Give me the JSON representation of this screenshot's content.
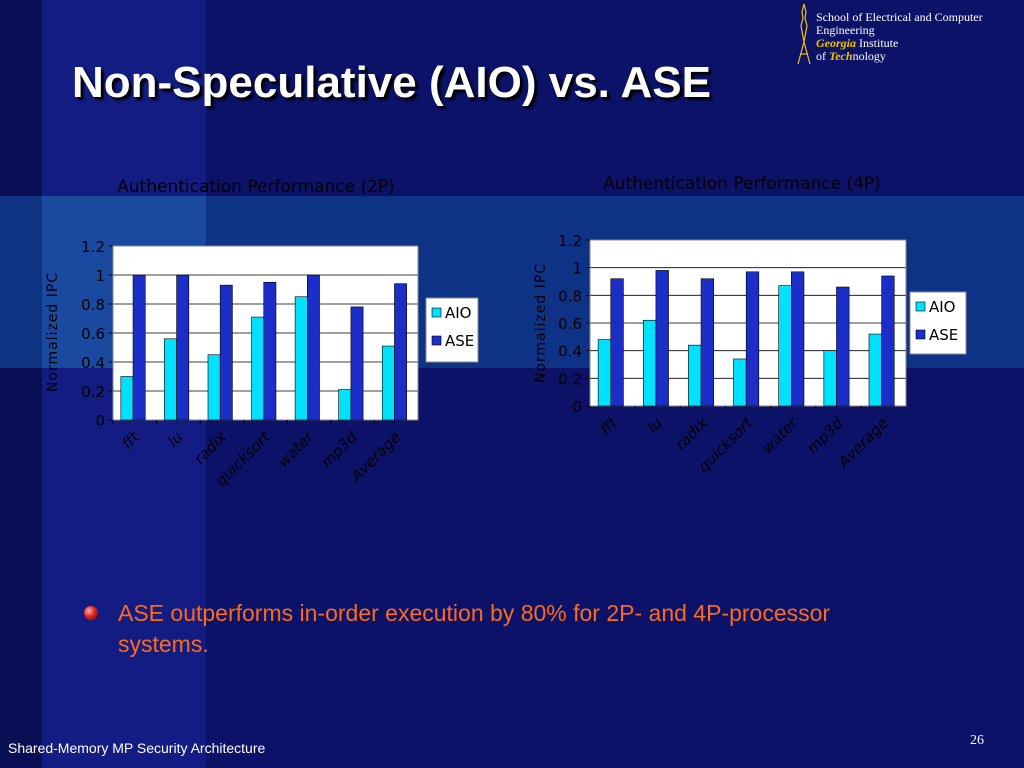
{
  "slide": {
    "title": "Non-Speculative (AIO) vs. ASE",
    "bullet": "ASE outperforms in-order execution by 80% for 2P- and 4P-processor systems.",
    "footer": "Shared-Memory MP Security Architecture",
    "page_number": "26"
  },
  "logo": {
    "line1": "School of Electrical and Computer",
    "line2": "Engineering",
    "georgia": "Georgia",
    "institute": " Institute",
    "of": "of ",
    "tech": "Tech",
    "nology": "nology"
  },
  "colors": {
    "aio": "#00e0ff",
    "ase": "#1c2ec8",
    "plot_bg": "#ffffff",
    "chart_text": "#000000",
    "bullet_text": "#ff6a1a"
  },
  "chart_data": [
    {
      "type": "bar",
      "title": "Authentication Performance (2P)",
      "ylabel": "Normalized IPC",
      "xlabel": "",
      "categories": [
        "fft",
        "lu",
        "radix",
        "quicksort",
        "water",
        "mp3d",
        "Average"
      ],
      "series": [
        {
          "name": "AIO",
          "values": [
            0.3,
            0.56,
            0.45,
            0.71,
            0.85,
            0.21,
            0.51
          ]
        },
        {
          "name": "ASE",
          "values": [
            1.0,
            1.0,
            0.93,
            0.95,
            1.0,
            0.78,
            0.94
          ]
        }
      ],
      "ylim": [
        0,
        1.2
      ],
      "yticks": [
        "0",
        "0.2",
        "0.4",
        "0.6",
        "0.8",
        "1",
        "1.2"
      ],
      "legend": "right",
      "grid": true
    },
    {
      "type": "bar",
      "title": "Authentication Performance (4P)",
      "ylabel": "Normalized IPC",
      "xlabel": "",
      "categories": [
        "fft",
        "lu",
        "radix",
        "quicksort",
        "water",
        "mp3d",
        "Average"
      ],
      "series": [
        {
          "name": "AIO",
          "values": [
            0.48,
            0.62,
            0.44,
            0.34,
            0.87,
            0.4,
            0.52
          ]
        },
        {
          "name": "ASE",
          "values": [
            0.92,
            0.98,
            0.92,
            0.97,
            0.97,
            0.86,
            0.94
          ]
        }
      ],
      "ylim": [
        0,
        1.2
      ],
      "yticks": [
        "0",
        "0.2",
        "0.4",
        "0.6",
        "0.8",
        "1",
        "1.2"
      ],
      "legend": "right",
      "grid": true
    }
  ]
}
